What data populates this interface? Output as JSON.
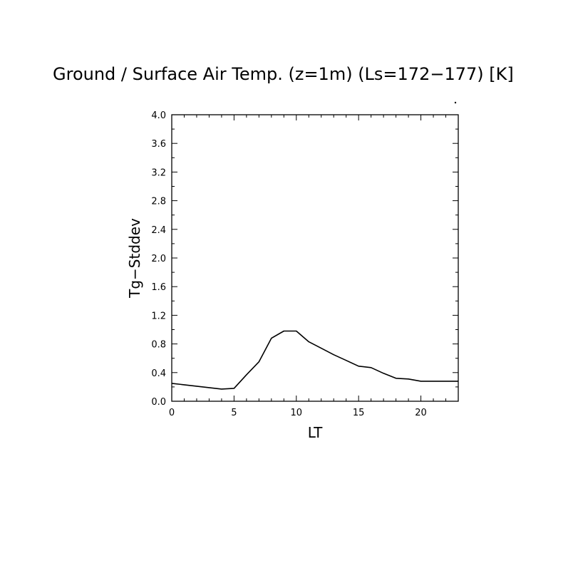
{
  "chart_data": {
    "type": "line",
    "title": "Ground / Surface Air Temp. (z=1m) (Ls=172−177) [K]",
    "xlabel": "LT",
    "ylabel": "Tg−Stddev",
    "xlim": [
      0,
      23
    ],
    "ylim": [
      0,
      4.0
    ],
    "x_ticks": [
      0,
      5,
      10,
      15,
      20
    ],
    "x_tick_labels": [
      "0",
      "5",
      "10",
      "15",
      "20"
    ],
    "y_ticks": [
      0,
      0.4,
      0.8,
      1.2,
      1.6,
      2.0,
      2.4,
      2.8,
      3.2,
      3.6,
      4.0
    ],
    "y_tick_labels": [
      "0.0",
      "0.4",
      "0.8",
      "1.2",
      "1.6",
      "2.0",
      "2.4",
      "2.8",
      "3.2",
      "3.6",
      "4.0"
    ],
    "grid": false,
    "series": [
      {
        "x": [
          0,
          1,
          2,
          3,
          4,
          5,
          6,
          7,
          8,
          9,
          10,
          11,
          12,
          13,
          14,
          15,
          16,
          17,
          18,
          19,
          20,
          21,
          22,
          23
        ],
        "values": [
          0.25,
          0.23,
          0.21,
          0.19,
          0.17,
          0.18,
          0.37,
          0.55,
          0.88,
          0.98,
          0.98,
          0.83,
          0.74,
          0.65,
          0.57,
          0.49,
          0.47,
          0.39,
          0.32,
          0.31,
          0.28,
          0.28,
          0.28,
          0.28
        ]
      }
    ],
    "line_color": "#000000"
  }
}
